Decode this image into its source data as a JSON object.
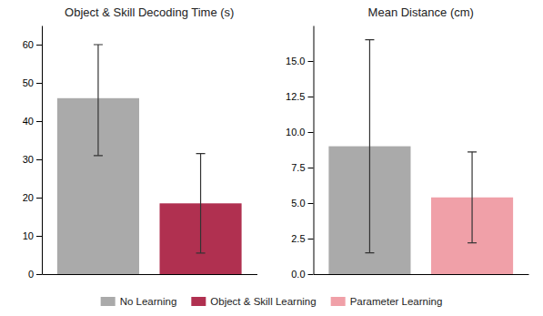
{
  "chart_data": [
    {
      "type": "bar",
      "title": "Object & Skill Decoding Time (s)",
      "categories": [
        null,
        null
      ],
      "series": [
        {
          "name": "No Learning",
          "color": "#aaaaaa",
          "values": [
            46,
            null
          ],
          "errors_upper": [
            14,
            null
          ],
          "errors_lower": [
            15,
            null
          ]
        },
        {
          "name": "Object & Skill Learning",
          "color": "#b03050",
          "values": [
            null,
            18.5
          ],
          "errors_upper": [
            null,
            13
          ],
          "errors_lower": [
            null,
            13
          ]
        }
      ],
      "ylim": [
        0,
        65
      ],
      "yticks": [
        0,
        10,
        20,
        30,
        40,
        50,
        60
      ],
      "grid": false,
      "legend": "bottom",
      "tick_labels": "y"
    },
    {
      "type": "bar",
      "title": "Mean Distance (cm)",
      "categories": [
        null,
        null
      ],
      "series": [
        {
          "name": "No Learning",
          "color": "#aaaaaa",
          "values": [
            9.0,
            null
          ],
          "errors_upper": [
            7.5,
            null
          ],
          "errors_lower": [
            7.5,
            null
          ]
        },
        {
          "name": "Parameter Learning",
          "color": "#f0a0a8",
          "values": [
            null,
            5.4
          ],
          "errors_upper": [
            null,
            3.2
          ],
          "errors_lower": [
            null,
            3.2
          ]
        }
      ],
      "ylim": [
        0,
        17.5
      ],
      "yticks": [
        {
          "value": 0,
          "label": "0.0"
        },
        2.5,
        {
          "value": 5,
          "label": "5.0"
        },
        7.5,
        {
          "value": 10,
          "label": "10.0"
        },
        12.5,
        {
          "value": 15,
          "label": "15.0"
        }
      ],
      "grid": false,
      "legend": "bottom",
      "tick_labels": "y"
    }
  ]
}
